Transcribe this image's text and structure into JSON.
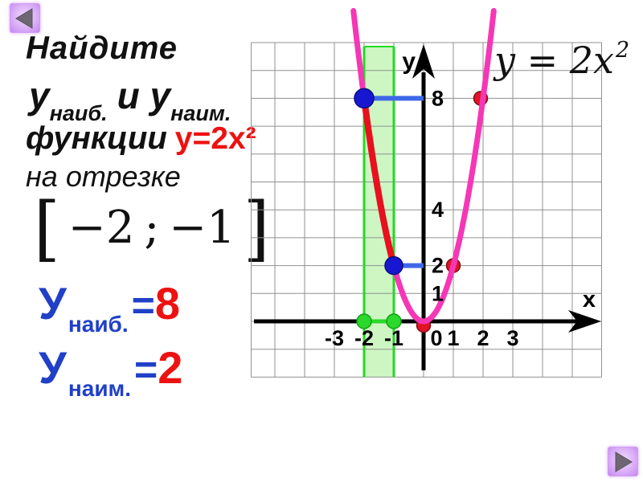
{
  "nav": {
    "back_icon": "left-triangle",
    "next_icon": "right-triangle"
  },
  "problem": {
    "line1": "Найдите",
    "y_symbol": "у",
    "sub_max": "наиб.",
    "conj": "и у",
    "sub_min": "наим.",
    "line3_prefix": "функции",
    "formula_red": "у=2х²",
    "line4": "на отрезке",
    "interval": {
      "open": "[",
      "from": "−2",
      "sep": ";",
      "to": "−1",
      "close": "]"
    }
  },
  "answers": {
    "max": {
      "symbol": "У",
      "sub": "наиб.",
      "eq": "=",
      "value": "8"
    },
    "min": {
      "symbol": "У",
      "sub": "наим.",
      "eq": "=",
      "value": "2"
    }
  },
  "graph_formula": {
    "base": "y = 2x",
    "sup": "2"
  },
  "text_colors": {
    "blue": "#2040c8",
    "red": "#ee1111",
    "black": "#111111"
  },
  "chart_data": {
    "type": "line",
    "title": "y = 2x²",
    "function": "y = 2*x^2",
    "coefficient": 2,
    "xlabel": "x",
    "ylabel": "y",
    "x_ticks": [
      -3,
      -2,
      -1,
      0,
      1,
      2,
      3
    ],
    "y_ticks": [
      1,
      2,
      4,
      8
    ],
    "xlim": [
      -5.8,
      5.95
    ],
    "ylim": [
      -2,
      10
    ],
    "grid": true,
    "key_points": [
      [
        -2,
        8
      ],
      [
        -1,
        2
      ],
      [
        0,
        0
      ],
      [
        1,
        2
      ],
      [
        2,
        8
      ]
    ],
    "highlight_segment": {
      "x_from": -2,
      "x_to": -1
    },
    "interval_band": {
      "x_from": -2,
      "x_to": -1
    },
    "max_point": {
      "x": -2,
      "y": 8
    },
    "min_point": {
      "x": -1,
      "y": 2
    },
    "guide_lines": [
      {
        "from": [
          -2,
          8
        ],
        "to": [
          0,
          8
        ]
      },
      {
        "from": [
          -1,
          2
        ],
        "to": [
          0,
          2
        ]
      }
    ],
    "blue_points": [
      [
        -2,
        8
      ],
      [
        -1,
        2
      ]
    ],
    "red_points": [
      [
        1,
        2
      ],
      [
        2,
        8
      ],
      [
        0,
        0
      ]
    ],
    "green_points": [
      [
        -2,
        0
      ],
      [
        -1,
        0
      ]
    ],
    "colors": {
      "curve": "#f537b5",
      "segment": "#e8101e",
      "guide": "#3e68e8",
      "blue_dot": "#1717d2",
      "red_dot": "#e11326",
      "green": "#2bd82b",
      "band_fill": "#cdf6c3",
      "band_edge": "#25d825",
      "grid": "#909090",
      "axis": "#000000"
    }
  }
}
